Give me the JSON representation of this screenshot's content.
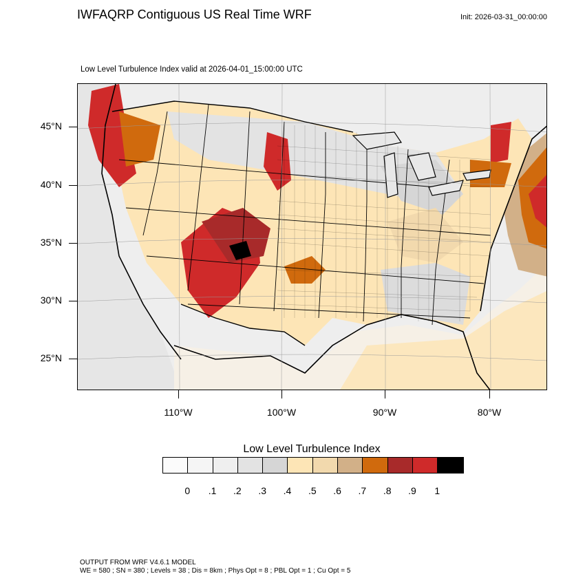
{
  "title": "IWFAQRP Contiguous US Real Time WRF",
  "init": "Init: 2026-03-31_00:00:00",
  "subtitle": "Low Level Turbulence Index valid at 2026-04-01_15:00:00 UTC",
  "lat_labels": [
    "45°N",
    "40°N",
    "35°N",
    "30°N",
    "25°N"
  ],
  "lon_labels": [
    "110°W",
    "100°W",
    "90°W",
    "80°W"
  ],
  "colorbar": {
    "title": "Low Level Turbulence Index",
    "labels": [
      "0",
      ".1",
      ".2",
      ".3",
      ".4",
      ".5",
      ".6",
      ".7",
      ".8",
      ".9",
      "1"
    ],
    "colors": [
      "#fbfbfb",
      "#f5f5f5",
      "#efefef",
      "#e3e3e3",
      "#d6d6d6",
      "#fde5b6",
      "#f2d9ad",
      "#d2b088",
      "#d06a0d",
      "#a82a2a",
      "#cf2a2a",
      "#000000"
    ]
  },
  "footer": {
    "line1": "OUTPUT FROM WRF V4.6.1 MODEL",
    "line2": "WE = 580 ; SN = 380 ; Levels = 38 ; Dis = 8km ; Phys Opt = 8 ; PBL Opt = 1 ; Cu Opt = 5"
  }
}
